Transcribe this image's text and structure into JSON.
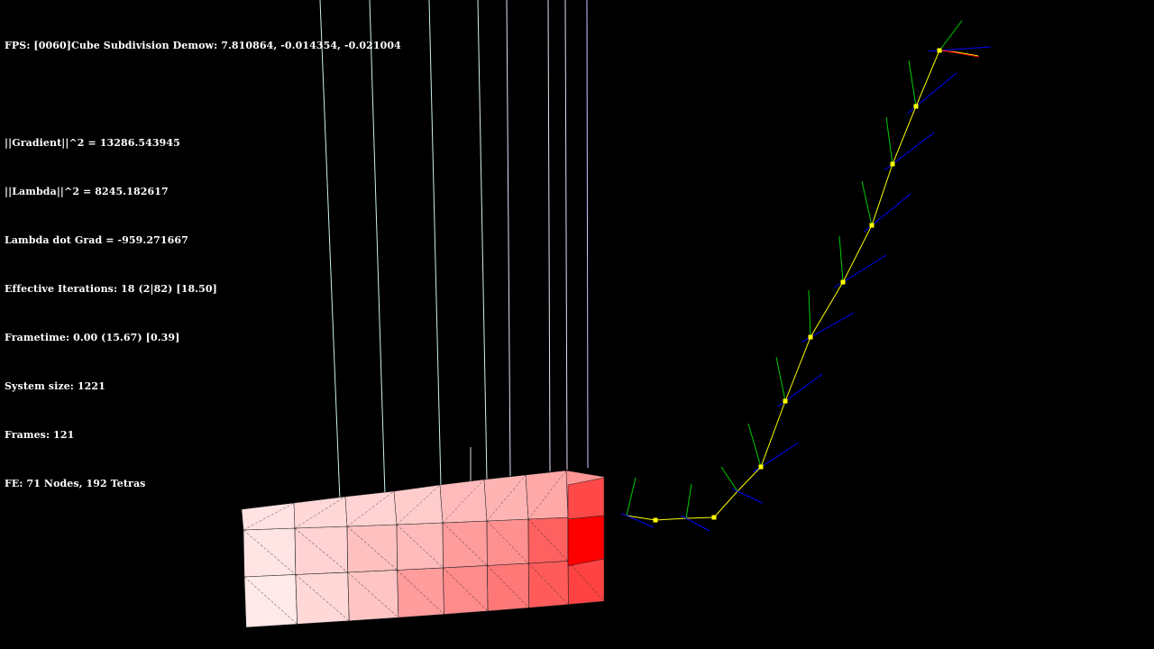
{
  "window": {
    "background": "#000000"
  },
  "hud": {
    "fps_line": "FPS: [0060]Cube Subdivision Demow: 7.810864, -0.014354, -0.021004",
    "gradient_line": "||Gradient||^2 = 13286.543945",
    "lambda_line": "||Lambda||^2 = 8245.182617",
    "lambda_dot_grad_line": "Lambda dot Grad = -959.271667",
    "iterations_line": "Effective Iterations: 18 (2|82) [18.50]",
    "frametime_line": "Frametime: 0.00 (15.67) [0.39]",
    "system_size_line": "System size: 1221",
    "frames_line": "Frames: 121",
    "fe_line": "FE: 71 Nodes, 192 Tetras"
  },
  "scene": {
    "mesh": {
      "color_low": "#fff0f0",
      "color_high": "#ff0000",
      "edge_color": "#222222",
      "stress_top": [
        0.06,
        0.1,
        0.12,
        0.15,
        0.22,
        0.25,
        0.3,
        0.38
      ],
      "stress_mid": [
        0.05,
        0.12,
        0.2,
        0.22,
        0.35,
        0.4,
        0.6,
        0.85
      ],
      "stress_mid_right": [
        0.05,
        0.15,
        0.18,
        0.25,
        0.32,
        0.45,
        0.62,
        1.0
      ],
      "stress_bot": [
        0.03,
        0.1,
        0.18,
        0.35,
        0.42,
        0.5,
        0.62,
        0.72
      ]
    },
    "rod": {
      "line_color": "#ffff00",
      "node_color": "#ffff00",
      "frame_colors": {
        "tangent": "#ff0000",
        "normal": "#00cc00",
        "binormal": "#0000ff"
      }
    },
    "constraint_lines": {
      "colors": [
        "#c8f0f0",
        "#c8f0f0",
        "#c8f0f0",
        "#d4ecf0",
        "#dce4f4",
        "#e4e0f4",
        "#e8d8f4",
        "#c8c8ff"
      ]
    }
  }
}
